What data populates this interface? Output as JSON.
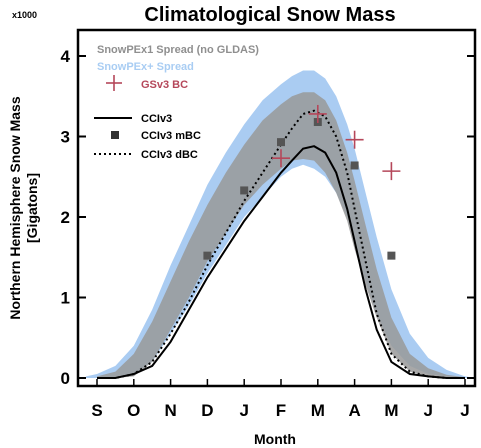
{
  "chart_data": {
    "type": "line",
    "title": "Climatological Snow Mass",
    "ylabel_line1": "Northern Hemisphere Snow Mass",
    "ylabel_line2": "[Gigatons]",
    "xlabel": "Month",
    "y_multiplier": "x1000",
    "categories": [
      "S",
      "O",
      "N",
      "D",
      "J",
      "F",
      "M",
      "A",
      "M",
      "J",
      "J"
    ],
    "ylim": [
      0,
      4
    ],
    "yticks": [
      "0",
      "1",
      "2",
      "3",
      "4"
    ],
    "grid": false,
    "legend_position": "top-left",
    "colors": {
      "spread1": "#999999",
      "spread2": "#aaccf2",
      "gsv3": "#b5475a",
      "ccicore": "#000000",
      "mbc": "#555555"
    },
    "legend": {
      "spread1": "SnowPEx1 Spread (no GLDAS)",
      "spread2": "SnowPEx+ Spread",
      "gsv3": "GSv3 BC",
      "cci": "CCIv3",
      "mbc": "CCIv3 mBC",
      "dbc": "CCIv3 dBC"
    },
    "series": [
      {
        "name": "SnowPEx+ Spread",
        "kind": "band",
        "x": [
          -0.3,
          0,
          0.5,
          1,
          1.5,
          2,
          2.5,
          3,
          3.5,
          4,
          4.5,
          5,
          5.3,
          5.6,
          5.9,
          6.2,
          6.5,
          6.8,
          7,
          7.3,
          7.6,
          8,
          8.5,
          9,
          9.5,
          10,
          10.3
        ],
        "lower": [
          0,
          0,
          0,
          0.05,
          0.2,
          0.55,
          0.9,
          1.3,
          1.65,
          2.0,
          2.25,
          2.5,
          2.6,
          2.65,
          2.6,
          2.5,
          2.3,
          2.0,
          1.7,
          1.2,
          0.8,
          0.4,
          0.15,
          0.05,
          0.02,
          0,
          0
        ],
        "upper": [
          0.02,
          0.05,
          0.15,
          0.4,
          0.85,
          1.4,
          1.9,
          2.4,
          2.8,
          3.15,
          3.45,
          3.65,
          3.75,
          3.82,
          3.82,
          3.72,
          3.5,
          3.15,
          2.85,
          2.3,
          1.75,
          1.1,
          0.55,
          0.25,
          0.1,
          0.02,
          0
        ]
      },
      {
        "name": "SnowPEx1 Spread (no GLDAS)",
        "kind": "band",
        "x": [
          0,
          0.5,
          1,
          1.5,
          2,
          2.5,
          3,
          3.5,
          4,
          4.5,
          5,
          5.3,
          5.6,
          5.9,
          6.2,
          6.5,
          6.8,
          7,
          7.3,
          7.6,
          8,
          8.5,
          9,
          9.5,
          10
        ],
        "lower": [
          0,
          0,
          0.02,
          0.2,
          0.6,
          1.0,
          1.45,
          1.8,
          2.15,
          2.4,
          2.6,
          2.7,
          2.72,
          2.7,
          2.55,
          2.3,
          1.95,
          1.6,
          1.15,
          0.75,
          0.3,
          0.08,
          0.02,
          0,
          0
        ],
        "upper": [
          0.02,
          0.08,
          0.3,
          0.7,
          1.2,
          1.7,
          2.15,
          2.55,
          2.9,
          3.2,
          3.4,
          3.5,
          3.55,
          3.55,
          3.45,
          3.2,
          2.8,
          2.45,
          1.9,
          1.35,
          0.75,
          0.3,
          0.12,
          0.04,
          0.01
        ]
      },
      {
        "name": "CCIv3",
        "kind": "line",
        "style": "solid",
        "x": [
          0,
          0.5,
          1,
          1.5,
          2,
          2.5,
          3,
          3.5,
          4,
          4.5,
          5,
          5.3,
          5.6,
          5.9,
          6.2,
          6.5,
          6.8,
          7,
          7.3,
          7.6,
          8,
          8.5,
          9,
          9.5,
          10
        ],
        "y": [
          0,
          0,
          0.05,
          0.15,
          0.45,
          0.85,
          1.25,
          1.6,
          1.95,
          2.25,
          2.55,
          2.7,
          2.85,
          2.88,
          2.8,
          2.55,
          2.1,
          1.7,
          1.1,
          0.6,
          0.2,
          0.05,
          0.02,
          0,
          0
        ]
      },
      {
        "name": "CCIv3 dBC",
        "kind": "line",
        "style": "dotted",
        "x": [
          0,
          0.5,
          1,
          1.5,
          2,
          2.5,
          3,
          3.5,
          4,
          4.5,
          5,
          5.3,
          5.6,
          5.9,
          6.2,
          6.5,
          6.8,
          7,
          7.3,
          7.6,
          8,
          8.5,
          9,
          9.5,
          10
        ],
        "y": [
          0,
          0,
          0.05,
          0.2,
          0.55,
          0.95,
          1.4,
          1.8,
          2.2,
          2.55,
          2.9,
          3.1,
          3.28,
          3.32,
          3.25,
          3.0,
          2.55,
          2.1,
          1.45,
          0.8,
          0.3,
          0.08,
          0.02,
          0,
          0
        ]
      },
      {
        "name": "CCIv3 mBC",
        "kind": "points",
        "marker": "square",
        "x": [
          3,
          4,
          5,
          6,
          7,
          8
        ],
        "y": [
          1.52,
          2.33,
          2.93,
          3.18,
          2.64,
          1.52
        ]
      },
      {
        "name": "GSv3 BC",
        "kind": "points",
        "marker": "plus",
        "x": [
          5,
          6,
          7,
          8
        ],
        "y": [
          2.73,
          3.28,
          2.96,
          2.57
        ]
      }
    ]
  }
}
